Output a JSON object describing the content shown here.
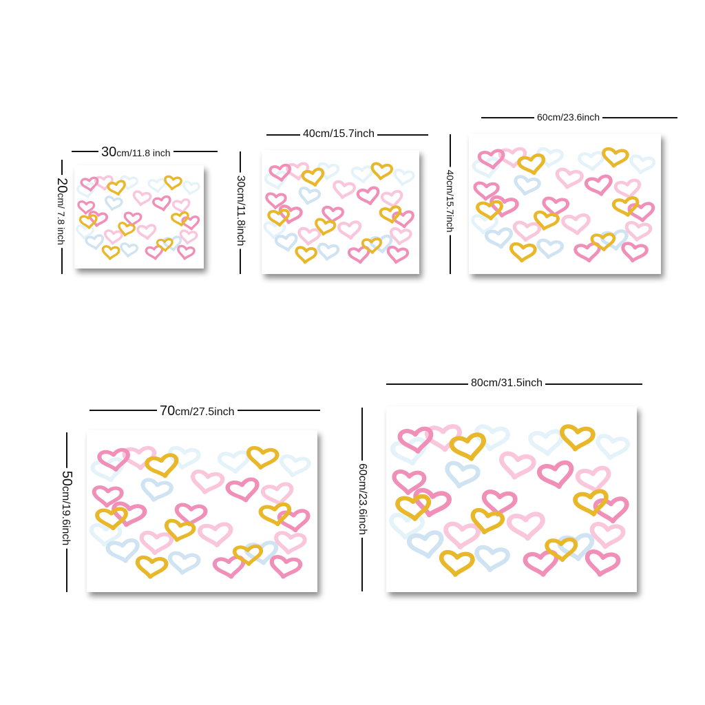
{
  "sizes": [
    {
      "width_num": "30",
      "width_unit": "cm/11.8 inch",
      "height_num": "20",
      "height_unit": "cm/ 7.8 inch"
    },
    {
      "width_label": "40cm/15.7inch",
      "height_label": "30cm/11.8inch"
    },
    {
      "width_label": "60cm/23.6inch",
      "height_label": "40cm/15.7inch"
    },
    {
      "width_num": "70",
      "width_unit": "cm/27.5inch",
      "height_num": "50",
      "height_unit": "cm/19.6inch"
    },
    {
      "width_label": "80cm/31.5inch",
      "height_label": "60cm/23.6inch"
    }
  ],
  "colors": {
    "pink": "#f08fb8",
    "light_pink": "#f9c6dc",
    "gold": "#e8b72a",
    "light_blue": "#cfe3f2",
    "ice_blue": "#e4f2fa"
  }
}
